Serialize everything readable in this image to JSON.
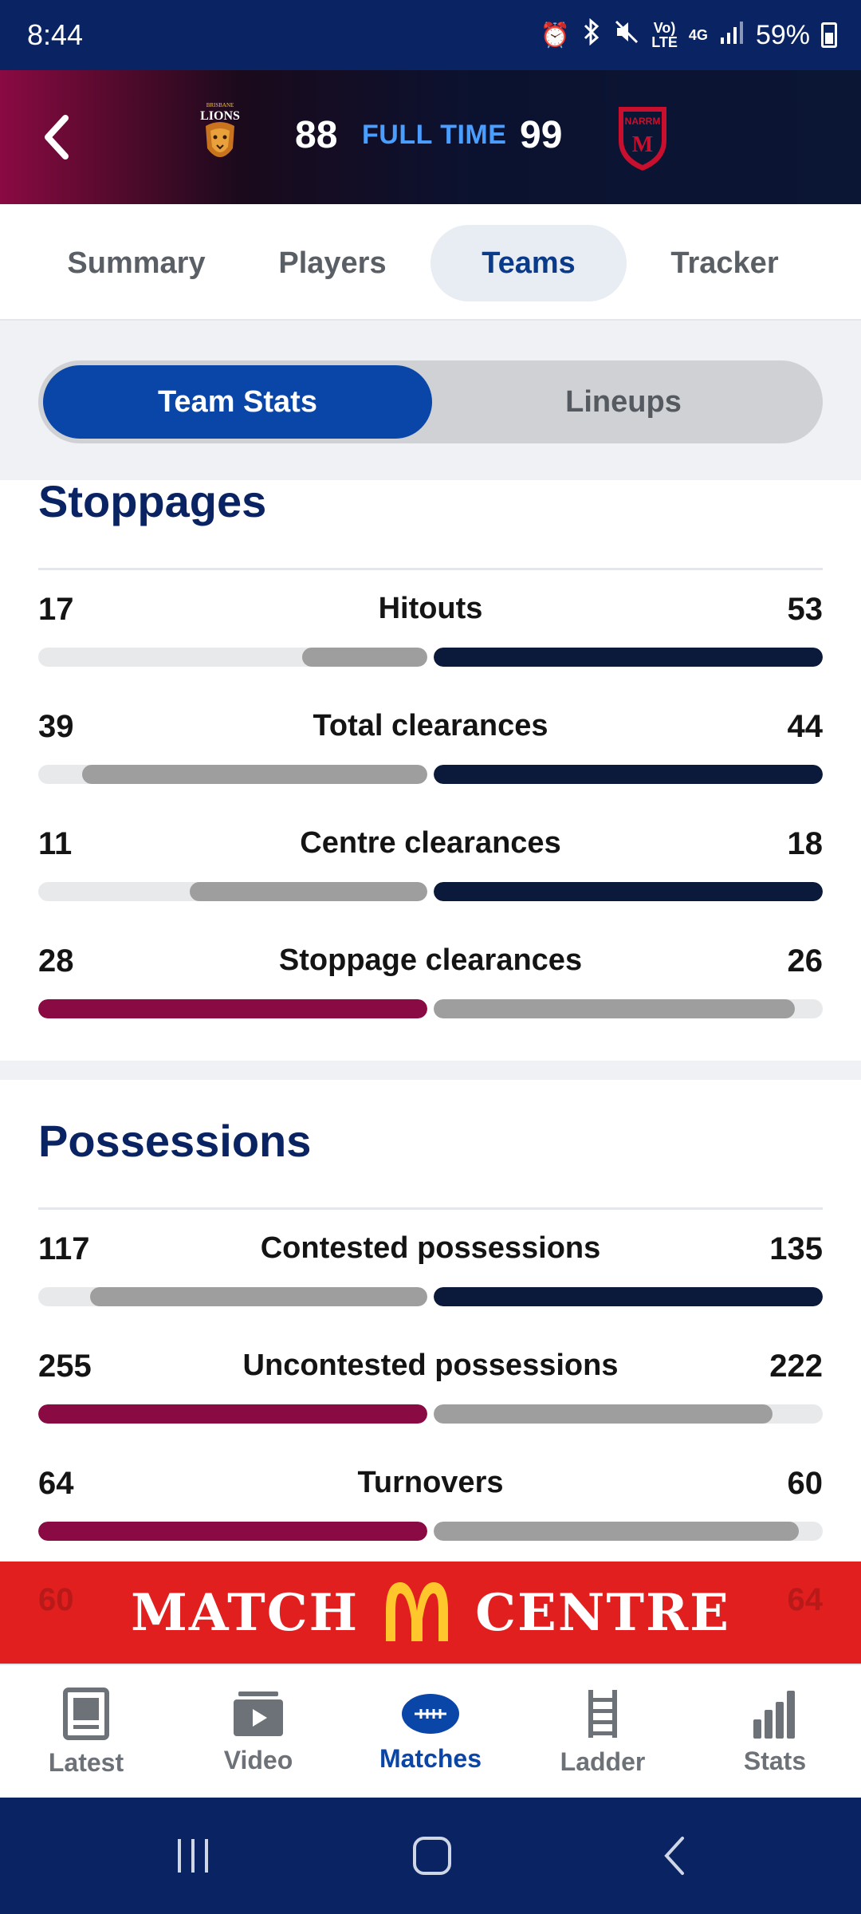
{
  "status_bar": {
    "time": "8:44",
    "network_top": "Vo)",
    "network_bottom": "LTE",
    "network_type": "4G",
    "battery": "59%"
  },
  "match": {
    "home_score": "88",
    "status": "FULL TIME",
    "away_score": "99",
    "home_logo_text": "BRISBANE LIONS",
    "away_logo_text": "NARRM"
  },
  "tabs": [
    "Summary",
    "Players",
    "Teams",
    "Tracker"
  ],
  "active_tab": "Teams",
  "segment": {
    "active": "Team Stats",
    "inactive": "Lineups"
  },
  "sections": [
    {
      "title": "Stoppages",
      "stats": [
        {
          "name": "Hitouts",
          "home": "17",
          "away": "53",
          "leader": "away"
        },
        {
          "name": "Total clearances",
          "home": "39",
          "away": "44",
          "leader": "away"
        },
        {
          "name": "Centre clearances",
          "home": "11",
          "away": "18",
          "leader": "away"
        },
        {
          "name": "Stoppage clearances",
          "home": "28",
          "away": "26",
          "leader": "home"
        }
      ]
    },
    {
      "title": "Possessions",
      "stats": [
        {
          "name": "Contested possessions",
          "home": "117",
          "away": "135",
          "leader": "away"
        },
        {
          "name": "Uncontested possessions",
          "home": "255",
          "away": "222",
          "leader": "home"
        },
        {
          "name": "Turnovers",
          "home": "64",
          "away": "60",
          "leader": "home"
        }
      ]
    }
  ],
  "banner": {
    "left_text": "MATCH",
    "right_text": "CENTRE",
    "ghost_home": "60",
    "ghost_away": "64"
  },
  "bottom_nav": [
    {
      "label": "Latest",
      "icon": "news-icon"
    },
    {
      "label": "Video",
      "icon": "video-icon"
    },
    {
      "label": "Matches",
      "icon": "football-icon"
    },
    {
      "label": "Ladder",
      "icon": "ladder-icon"
    },
    {
      "label": "Stats",
      "icon": "stats-chart-icon"
    }
  ],
  "active_nav": "Matches",
  "colors": {
    "home_team": "#8a0a43",
    "away_team": "#0b1a3a",
    "trailing": "#9e9e9e",
    "accent": "#0a46a8",
    "header": "#0a2463",
    "banner": "#e21f1f"
  }
}
